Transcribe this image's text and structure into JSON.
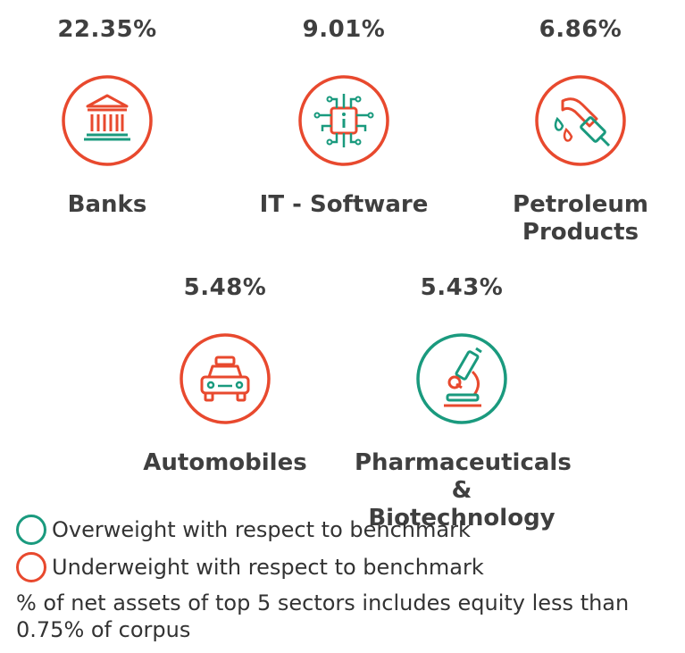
{
  "chart_data": {
    "type": "table",
    "categories": [
      "Banks",
      "IT - Software",
      "Petroleum\nProducts",
      "Automobiles",
      "Pharmaceuticals\n& Biotechnology"
    ],
    "values": [
      22.35,
      9.01,
      6.86,
      5.48,
      5.43
    ],
    "value_labels": [
      "22.35%",
      "9.01%",
      "6.86%",
      "5.48%",
      "5.43%"
    ],
    "weight": [
      "underweight",
      "underweight",
      "underweight",
      "underweight",
      "overweight"
    ],
    "icons": [
      "bank-icon",
      "chip-icon",
      "fuel-nozzle-icon",
      "car-icon",
      "microscope-icon"
    ]
  },
  "legend": {
    "overweight": {
      "label": "Overweight with respect to benchmark",
      "color": "#1a9a7e"
    },
    "underweight": {
      "label": "Underweight with respect to benchmark",
      "color": "#e8492e"
    }
  },
  "footnote": "% of net assets of top 5 sectors includes equity less than 0.75% of corpus",
  "colors": {
    "green": "#1a9a7e",
    "red": "#e8492e",
    "text": "#3f3f3f"
  }
}
